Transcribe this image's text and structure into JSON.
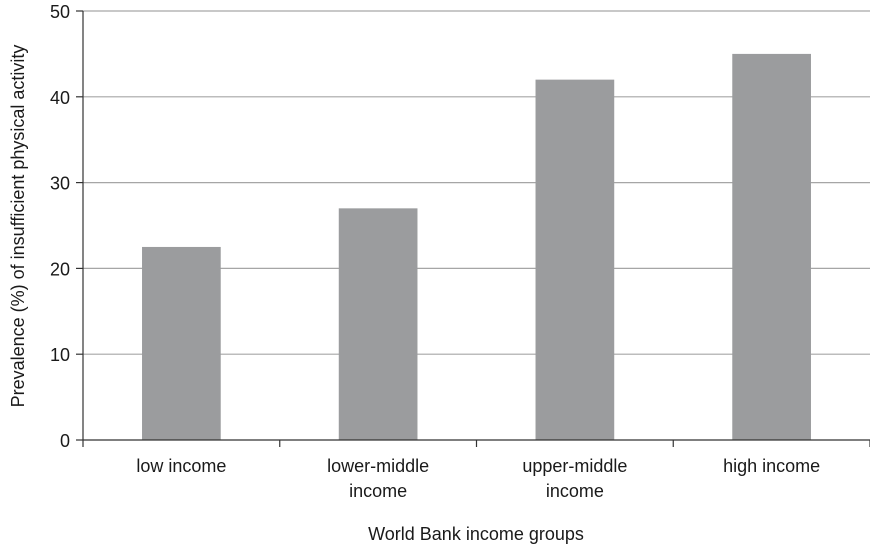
{
  "chart_data": {
    "type": "bar",
    "title": "",
    "xlabel": "World Bank income groups",
    "ylabel": "Prevalence (%) of insufficient physical activity",
    "categories": [
      [
        "low income"
      ],
      [
        "lower-middle",
        "income"
      ],
      [
        "upper-middle",
        "income"
      ],
      [
        "high income"
      ]
    ],
    "values": [
      22.5,
      27,
      42,
      45
    ],
    "ylim": [
      0,
      50
    ],
    "yticks": [
      "0",
      "10",
      "20",
      "30",
      "40",
      "50"
    ],
    "grid": "horizontal",
    "legend": "none",
    "colors": {
      "bar": "#9b9c9e",
      "grid": "#a6a6a6",
      "axis": "#333333"
    }
  }
}
